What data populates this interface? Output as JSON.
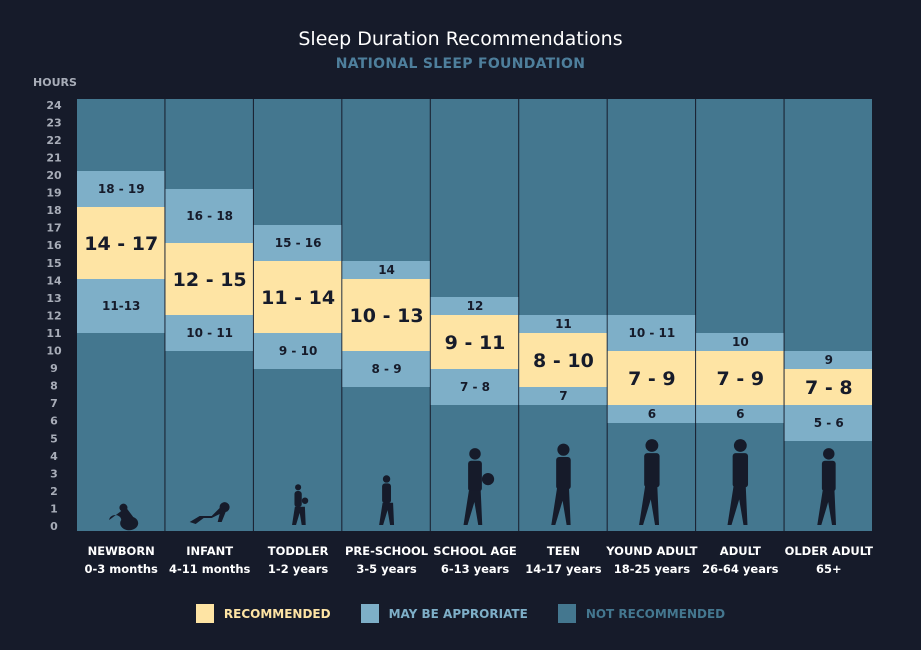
{
  "chart_data": {
    "type": "bar",
    "title": "Sleep Duration Recommendations",
    "subtitle": "NATIONAL SLEEP FOUNDATION",
    "ylabel": "HOURS",
    "ylim": [
      0,
      24
    ],
    "yticks": [
      0,
      1,
      2,
      3,
      4,
      5,
      6,
      7,
      8,
      9,
      10,
      11,
      12,
      13,
      14,
      15,
      16,
      17,
      18,
      19,
      20,
      21,
      22,
      23,
      24
    ],
    "categories": [
      {
        "name": "NEWBORN",
        "age": "0-3 months",
        "recommended": [
          14,
          17
        ],
        "rec_label": "14 - 17",
        "may_low": [
          11,
          13
        ],
        "may_low_label": "11-13",
        "may_high": [
          18,
          19
        ],
        "may_high_label": "18 - 19"
      },
      {
        "name": "INFANT",
        "age": "4-11 months",
        "recommended": [
          12,
          15
        ],
        "rec_label": "12 - 15",
        "may_low": [
          10,
          11
        ],
        "may_low_label": "10 - 11",
        "may_high": [
          16,
          18
        ],
        "may_high_label": "16 - 18"
      },
      {
        "name": "TODDLER",
        "age": "1-2 years",
        "recommended": [
          11,
          14
        ],
        "rec_label": "11 - 14",
        "may_low": [
          9,
          10
        ],
        "may_low_label": "9 - 10",
        "may_high": [
          15,
          16
        ],
        "may_high_label": "15 - 16"
      },
      {
        "name": "PRE-SCHOOL",
        "age": "3-5 years",
        "recommended": [
          10,
          13
        ],
        "rec_label": "10 - 13",
        "may_low": [
          8,
          9
        ],
        "may_low_label": "8 - 9",
        "may_high": [
          14,
          14
        ],
        "may_high_label": "14"
      },
      {
        "name": "SCHOOL AGE",
        "age": "6-13 years",
        "recommended": [
          9,
          11
        ],
        "rec_label": "9 - 11",
        "may_low": [
          7,
          8
        ],
        "may_low_label": "7 - 8",
        "may_high": [
          12,
          12
        ],
        "may_high_label": "12"
      },
      {
        "name": "TEEN",
        "age": "14-17 years",
        "recommended": [
          8,
          10
        ],
        "rec_label": "8 - 10",
        "may_low": [
          7,
          7
        ],
        "may_low_label": "7",
        "may_high": [
          11,
          11
        ],
        "may_high_label": "11"
      },
      {
        "name": "YOUND ADULT",
        "age": "18-25 years",
        "recommended": [
          7,
          9
        ],
        "rec_label": "7 - 9",
        "may_low": [
          6,
          6
        ],
        "may_low_label": "6",
        "may_high": [
          10,
          11
        ],
        "may_high_label": "10 - 11"
      },
      {
        "name": "ADULT",
        "age": "26-64 years",
        "recommended": [
          7,
          9
        ],
        "rec_label": "7 - 9",
        "may_low": [
          6,
          6
        ],
        "may_low_label": "6",
        "may_high": [
          10,
          10
        ],
        "may_high_label": "10"
      },
      {
        "name": "OLDER ADULT",
        "age": "65+",
        "recommended": [
          7,
          8
        ],
        "rec_label": "7 - 8",
        "may_low": [
          5,
          6
        ],
        "may_low_label": "5 - 6",
        "may_high": [
          9,
          9
        ],
        "may_high_label": "9"
      }
    ],
    "legend": [
      {
        "label": "RECOMMENDED",
        "color": "#fee4a4"
      },
      {
        "label": "MAY BE APPRORIATE",
        "color": "#7eafc8"
      },
      {
        "label": "NOT RECOMMENDED",
        "color": "#44778f"
      }
    ],
    "legend_position": "bottom"
  }
}
